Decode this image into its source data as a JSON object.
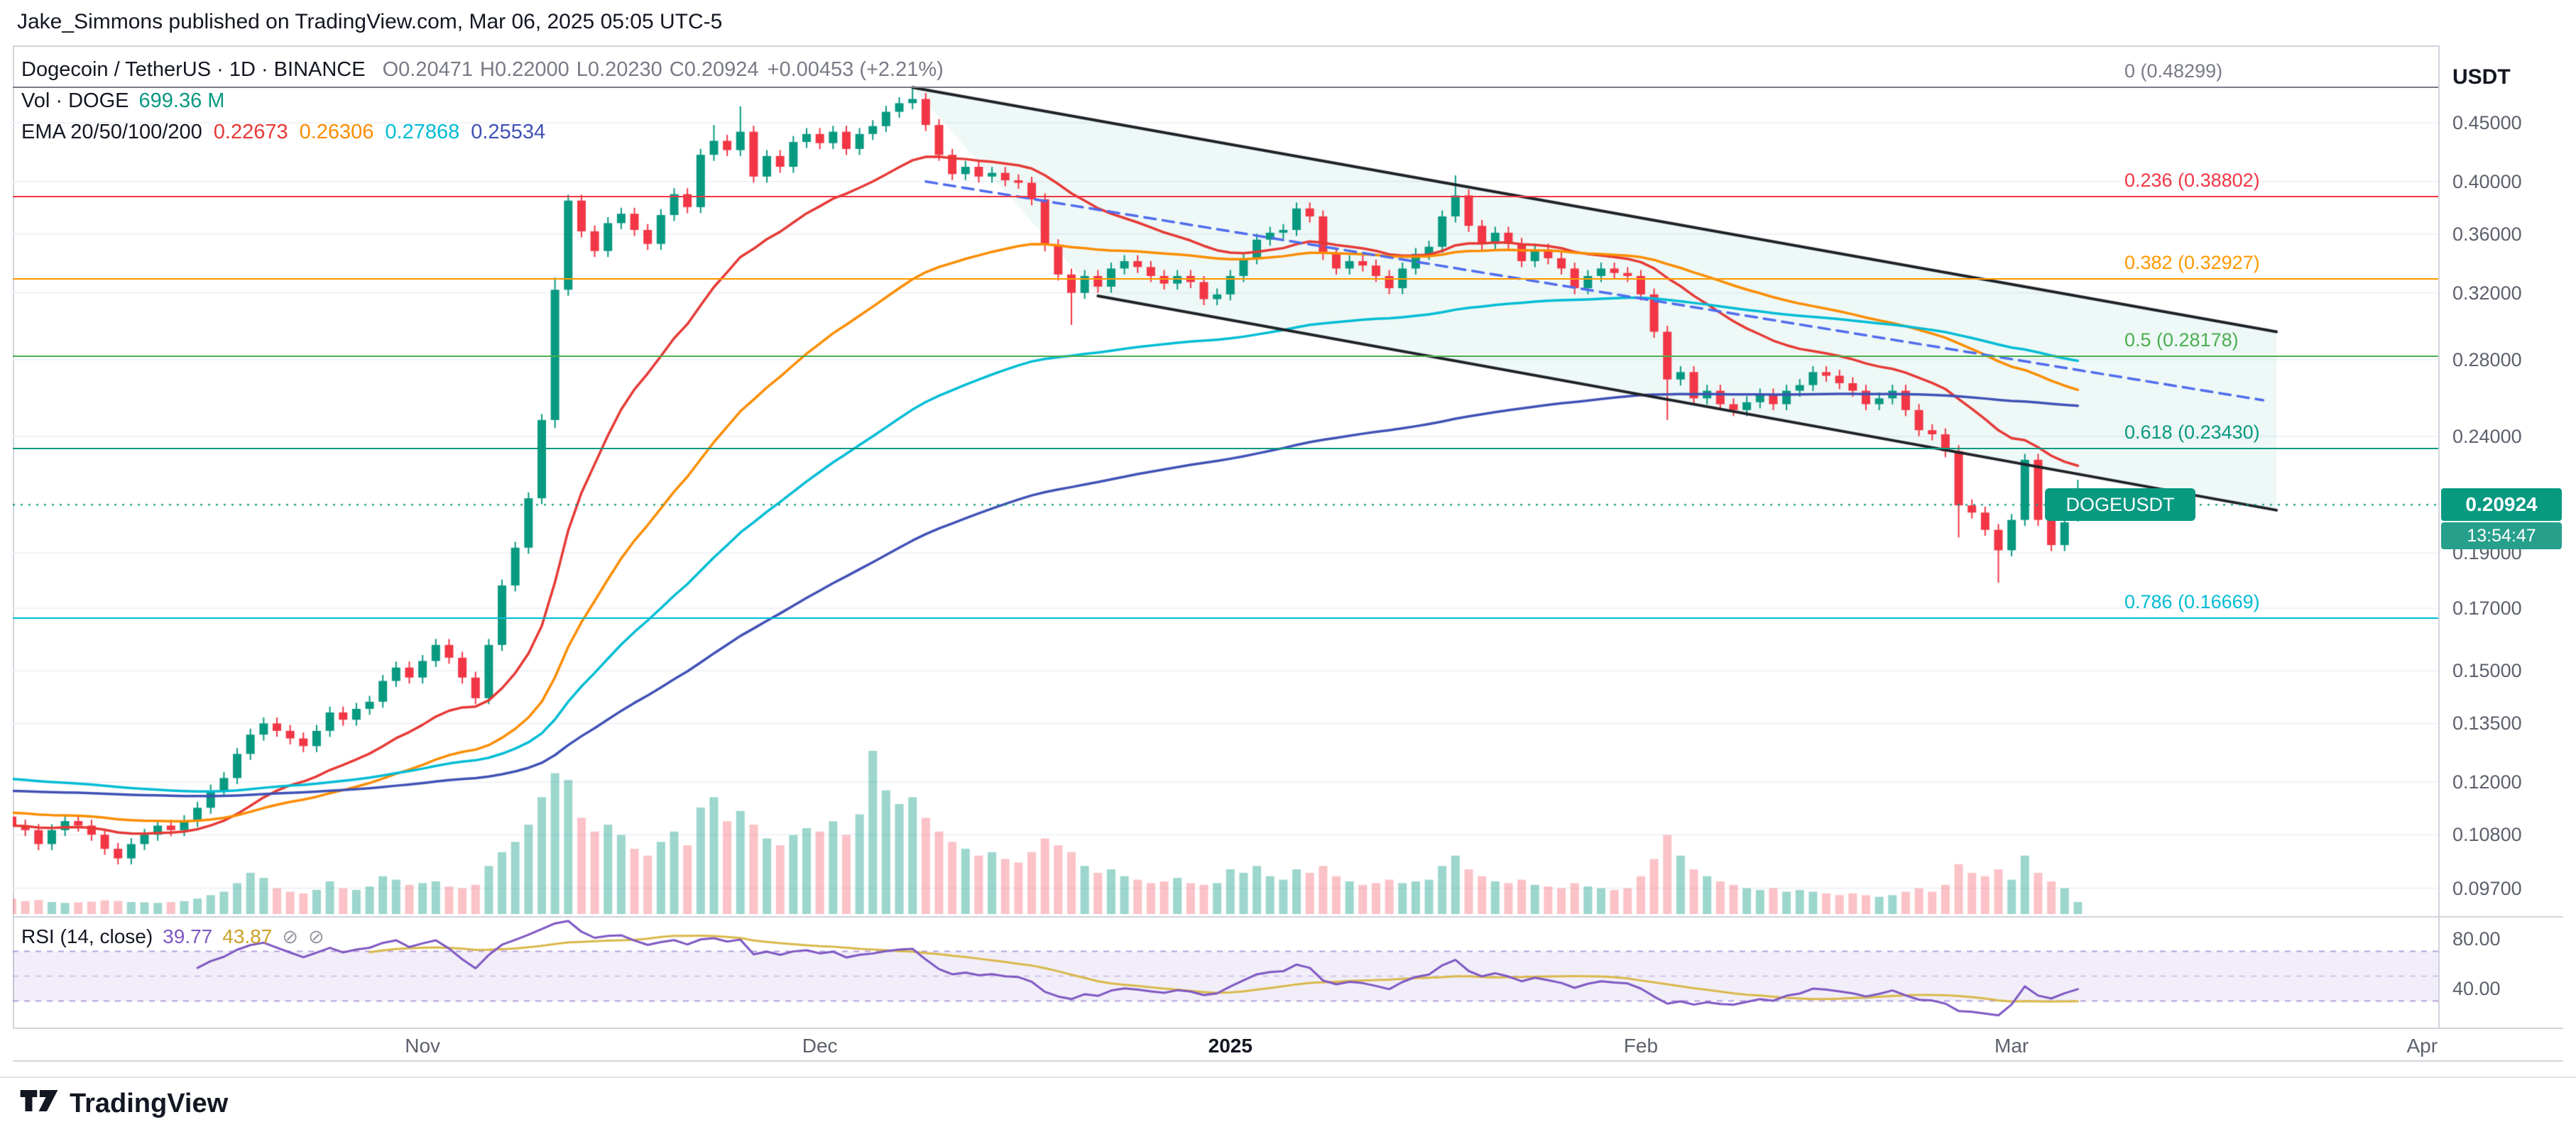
{
  "header": {
    "publisher_line": "Jake_Simmons published on TradingView.com, Mar 06, 2025 05:05 UTC-5"
  },
  "legend": {
    "symbol_line": "Dogecoin / TetherUS · 1D · BINANCE",
    "ohlc": [
      {
        "k": "O",
        "v": "0.20471"
      },
      {
        "k": "H",
        "v": "0.22000"
      },
      {
        "k": "L",
        "v": "0.20230"
      },
      {
        "k": "C",
        "v": "0.20924"
      }
    ],
    "change": "+0.00453 (+2.21%)",
    "volume_label": "Vol · DOGE",
    "volume_value": "699.36 M",
    "ema_label": "EMA 20/50/100/200",
    "ema_values": [
      {
        "value": "0.22673",
        "color": "#e53935"
      },
      {
        "value": "0.26306",
        "color": "#fb8c00"
      },
      {
        "value": "0.27868",
        "color": "#00bcd4"
      },
      {
        "value": "0.25534",
        "color": "#3f51b5"
      }
    ]
  },
  "price_axis": {
    "currency_label": "USDT",
    "ticks": [
      {
        "label": "0.45000",
        "value": 0.45
      },
      {
        "label": "0.40000",
        "value": 0.4
      },
      {
        "label": "0.36000",
        "value": 0.36
      },
      {
        "label": "0.32000",
        "value": 0.32
      },
      {
        "label": "0.28000",
        "value": 0.28
      },
      {
        "label": "0.24000",
        "value": 0.24
      },
      {
        "label": "0.19000",
        "value": 0.19
      },
      {
        "label": "0.17000",
        "value": 0.17
      },
      {
        "label": "0.15000",
        "value": 0.15
      },
      {
        "label": "0.13500",
        "value": 0.135
      },
      {
        "label": "0.12000",
        "value": 0.12
      },
      {
        "label": "0.10800",
        "value": 0.108
      },
      {
        "label": "0.09700",
        "value": 0.097
      }
    ],
    "price_badge": {
      "symbol": "DOGEUSDT",
      "price": "0.20924",
      "countdown": "13:54:47",
      "badge_color": "#089981",
      "countdown_color": "#26a08b"
    }
  },
  "fib_levels": [
    {
      "label": "0 (0.48299)",
      "price": 0.48299,
      "color": "#787b86"
    },
    {
      "label": "0.236 (0.38802)",
      "price": 0.38802,
      "color": "#f23645"
    },
    {
      "label": "0.382 (0.32927)",
      "price": 0.32927,
      "color": "#ff9800"
    },
    {
      "label": "0.5 (0.28178)",
      "price": 0.28178,
      "color": "#4caf50"
    },
    {
      "label": "0.618 (0.23430)",
      "price": 0.2343,
      "color": "#089981"
    },
    {
      "label": "0.786 (0.16669)",
      "price": 0.16669,
      "color": "#00bcd4"
    }
  ],
  "time_axis": {
    "labels": [
      {
        "text": "Nov",
        "day": 31,
        "emph": false
      },
      {
        "text": "Dec",
        "day": 61,
        "emph": false
      },
      {
        "text": "2025",
        "day": 92,
        "emph": true
      },
      {
        "text": "Feb",
        "day": 123,
        "emph": false
      },
      {
        "text": "Mar",
        "day": 151,
        "emph": false
      },
      {
        "text": "Apr",
        "day": 182,
        "emph": false
      }
    ]
  },
  "rsi": {
    "label": "RSI (14, close)",
    "value": "39.77",
    "ma_value": "43.87",
    "period": 14,
    "line_color": "#7e57c2",
    "ma_color": "#d9b84a",
    "band": [
      30,
      70
    ],
    "axis_ticks": [
      {
        "label": "80.00",
        "value": 80
      },
      {
        "label": "40.00",
        "value": 40
      }
    ]
  },
  "footer": {
    "brand": "TradingView"
  },
  "chart_data": {
    "type": "candlestick",
    "symbol": "DOGEUSDT",
    "exchange": "BINANCE",
    "interval": "1D",
    "price_scale": "logarithmic",
    "start_date": "2024-10-01",
    "end_date": "2025-03-06",
    "current_price": 0.20924,
    "last_candle": {
      "open": 0.20471,
      "high": 0.22,
      "low": 0.2023,
      "close": 0.20924,
      "change": "+0.00453 (+2.21%)"
    },
    "first_open": 0.112,
    "closes": [
      0.11,
      0.109,
      0.106,
      0.109,
      0.111,
      0.11,
      0.108,
      0.105,
      0.103,
      0.106,
      0.108,
      0.11,
      0.109,
      0.111,
      0.114,
      0.118,
      0.121,
      0.127,
      0.132,
      0.135,
      0.133,
      0.131,
      0.129,
      0.133,
      0.138,
      0.136,
      0.139,
      0.141,
      0.147,
      0.151,
      0.148,
      0.153,
      0.158,
      0.154,
      0.148,
      0.142,
      0.158,
      0.178,
      0.192,
      0.212,
      0.248,
      0.322,
      0.385,
      0.362,
      0.348,
      0.368,
      0.375,
      0.363,
      0.353,
      0.374,
      0.39,
      0.38,
      0.422,
      0.434,
      0.426,
      0.442,
      0.404,
      0.421,
      0.412,
      0.433,
      0.44,
      0.432,
      0.442,
      0.427,
      0.44,
      0.447,
      0.46,
      0.468,
      0.472,
      0.448,
      0.422,
      0.406,
      0.412,
      0.404,
      0.407,
      0.401,
      0.399,
      0.386,
      0.352,
      0.332,
      0.32,
      0.331,
      0.324,
      0.336,
      0.341,
      0.337,
      0.331,
      0.326,
      0.331,
      0.327,
      0.316,
      0.319,
      0.331,
      0.343,
      0.356,
      0.361,
      0.363,
      0.379,
      0.373,
      0.346,
      0.336,
      0.341,
      0.338,
      0.331,
      0.323,
      0.336,
      0.346,
      0.351,
      0.373,
      0.389,
      0.366,
      0.353,
      0.361,
      0.353,
      0.341,
      0.349,
      0.343,
      0.336,
      0.323,
      0.331,
      0.336,
      0.333,
      0.331,
      0.319,
      0.296,
      0.269,
      0.273,
      0.259,
      0.263,
      0.256,
      0.253,
      0.257,
      0.261,
      0.256,
      0.263,
      0.266,
      0.273,
      0.271,
      0.267,
      0.263,
      0.256,
      0.259,
      0.263,
      0.253,
      0.243,
      0.241,
      0.233,
      0.209,
      0.206,
      0.199,
      0.191,
      0.203,
      0.229,
      0.203,
      0.193,
      0.202,
      0.20924
    ],
    "ohlc_rule": {
      "open": "previous_close",
      "high_factor": 1.012,
      "low_factor": 0.988
    },
    "candle_overrides": {
      "41": {
        "high": 0.33,
        "low": 0.244
      },
      "53": {
        "high": 0.448
      },
      "55": {
        "high": 0.465
      },
      "68": {
        "high": 0.48299
      },
      "80": {
        "low": 0.3
      },
      "109": {
        "high": 0.405
      },
      "125": {
        "low": 0.248
      },
      "147": {
        "low": 0.196
      },
      "150": {
        "low": 0.179
      },
      "156": {
        "open": 0.20471,
        "high": 0.22,
        "low": 0.2023
      }
    },
    "up_color": "#089981",
    "down_color": "#f23645",
    "volume": {
      "unit": "millions",
      "last_label": "699.36 M",
      "scale_max_m": 9500,
      "up_color": "rgba(8,153,129,0.40)",
      "down_color": "rgba(242,54,69,0.30)",
      "values_m": [
        900,
        750,
        820,
        700,
        650,
        680,
        720,
        800,
        760,
        700,
        680,
        650,
        700,
        750,
        900,
        1100,
        1300,
        1800,
        2400,
        2100,
        1500,
        1300,
        1200,
        1400,
        1900,
        1500,
        1400,
        1600,
        2200,
        2000,
        1700,
        1800,
        1900,
        1600,
        1500,
        1700,
        2800,
        3600,
        4200,
        5200,
        6800,
        8200,
        7800,
        5600,
        4800,
        5200,
        4600,
        3800,
        3400,
        4200,
        4800,
        4000,
        6200,
        6800,
        5400,
        6000,
        5200,
        4400,
        4000,
        4600,
        5000,
        4800,
        5400,
        4600,
        5800,
        9500,
        7200,
        6400,
        6800,
        5600,
        4800,
        4200,
        3800,
        3400,
        3600,
        3200,
        3000,
        3600,
        4400,
        4000,
        3600,
        2800,
        2400,
        2600,
        2200,
        2000,
        1800,
        1900,
        2100,
        1800,
        1700,
        1800,
        2600,
        2400,
        2800,
        2200,
        2000,
        2600,
        2400,
        2800,
        2200,
        1900,
        1700,
        1800,
        2000,
        1800,
        1900,
        2000,
        2800,
        3400,
        2600,
        2200,
        1900,
        1800,
        2000,
        1700,
        1600,
        1500,
        1800,
        1600,
        1500,
        1400,
        1500,
        2200,
        3200,
        4600,
        3400,
        2600,
        2200,
        1900,
        1700,
        1500,
        1400,
        1500,
        1300,
        1400,
        1300,
        1200,
        1100,
        1200,
        1100,
        1000,
        1100,
        1300,
        1500,
        1300,
        1700,
        2900,
        2400,
        2200,
        2600,
        2000,
        3400,
        2400,
        1900,
        1500,
        699.36
      ]
    },
    "emas": [
      20,
      50,
      100,
      200
    ],
    "ema_colors": {
      "20": "#e53935",
      "50": "#fb8c00",
      "100": "#00bcd4",
      "200": "#3f51b5"
    },
    "ema_seeds": {
      "20": 0.11,
      "50": 0.113,
      "100": 0.121,
      "200": 0.118
    },
    "ema_last_values": {
      "20": 0.22673,
      "50": 0.26306,
      "100": 0.27868,
      "200": 0.25534
    },
    "rsi": {
      "period": 14,
      "ma_period": 14,
      "last_value": 39.77
    },
    "fib_retracement": {
      "anchor_high": 0.48299,
      "levels_shown": [
        0,
        0.236,
        0.382,
        0.5,
        0.618,
        0.786
      ]
    },
    "annotations": {
      "channel": {
        "upper": {
          "x1_day": 68,
          "p1": 0.483,
          "x2_day": 171,
          "p2": 0.296
        },
        "lower": {
          "x1_day": 82,
          "p1": 0.318,
          "x2_day": 171,
          "p2": 0.207
        },
        "line_color": "#1f2328",
        "fill_color": "rgba(8,153,129,0.07)"
      },
      "dashed_trendline": {
        "x1_day": 69,
        "p1": 0.4,
        "x2_day": 170,
        "p2": 0.258,
        "color": "#4f6bed"
      }
    }
  }
}
